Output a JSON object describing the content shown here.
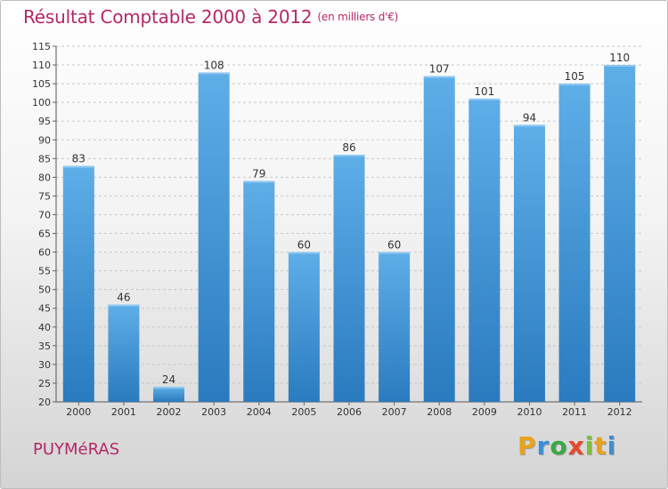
{
  "header": {
    "title": "Résultat Comptable 2000 à 2012",
    "subtitle": "(en milliers d'€)"
  },
  "footer": {
    "town": "PUYMéRAS",
    "brand": "Proxiti",
    "brand_letters": [
      "P",
      "r",
      "o",
      "x",
      "i",
      "t",
      "i"
    ],
    "brand_colors": [
      "#e8a21d",
      "#3b8fd6",
      "#3aa845",
      "#e5492f",
      "#7fbf3a",
      "#e8a21d",
      "#3b8fd6"
    ]
  },
  "chart_data": {
    "type": "bar",
    "title": "Résultat Comptable 2000 à 2012",
    "subtitle": "(en milliers d'€)",
    "categories": [
      "2000",
      "2001",
      "2002",
      "2003",
      "2004",
      "2005",
      "2006",
      "2007",
      "2008",
      "2009",
      "2010",
      "2011",
      "2012"
    ],
    "values": [
      83,
      46,
      24,
      108,
      79,
      60,
      86,
      60,
      107,
      101,
      94,
      105,
      110
    ],
    "xlabel": "",
    "ylabel": "",
    "ylim": [
      20,
      115
    ],
    "yticks": [
      20,
      25,
      30,
      35,
      40,
      45,
      50,
      55,
      60,
      65,
      70,
      75,
      80,
      85,
      90,
      95,
      100,
      105,
      110,
      115
    ],
    "grid": true,
    "bar_color_top": "#5eaee8",
    "bar_color_bottom": "#2a7bbf",
    "legend": "none"
  }
}
